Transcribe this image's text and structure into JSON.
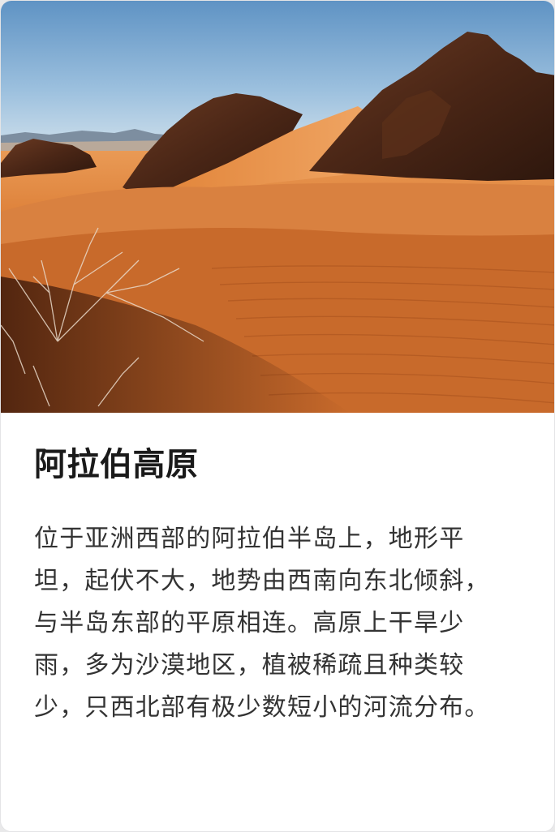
{
  "card": {
    "title": "阿拉伯高原",
    "description": "位于亚洲西部的阿拉伯半岛上，地形平坦，起伏不大，地势由西南向东北倾斜，与半岛东部的平原相连。高原上干旱少雨，多为沙漠地区，植被稀疏且种类较少，只西北部有极少数短小的河流分布。"
  },
  "image": {
    "subject": "desert-landscape-photo"
  }
}
